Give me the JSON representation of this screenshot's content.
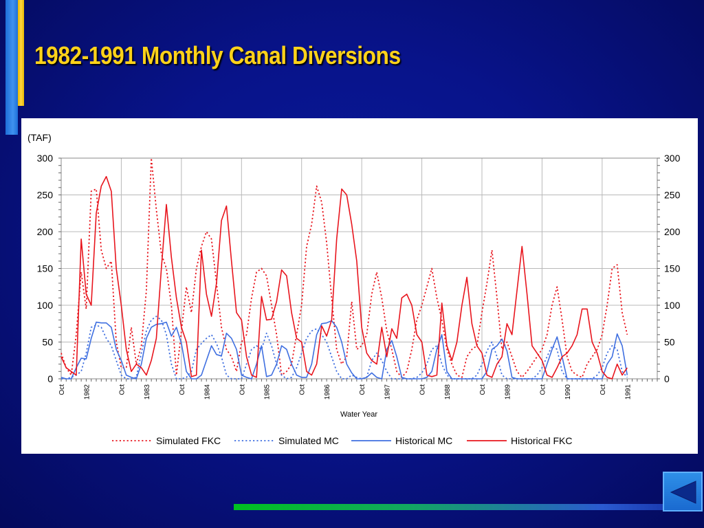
{
  "slide": {
    "title": "1982-1991 Monthly Canal Diversions"
  },
  "colors": {
    "fkc": "#e8141c",
    "mc": "#3f6fe0",
    "title": "#ffd21a"
  },
  "icons": {
    "nav_back": "back-arrow-icon"
  },
  "chart_data": {
    "type": "line",
    "unit_label": "(TAF)",
    "xlabel": "Water Year",
    "ylim": [
      0,
      300
    ],
    "yticks": [
      0,
      50,
      100,
      150,
      200,
      250,
      300
    ],
    "grid": true,
    "legend_position": "bottom",
    "x_start": "1981-10",
    "x_end": "1991-09",
    "x_tick_labels": [
      {
        "month": 0,
        "label": "Oct"
      },
      {
        "month": 5,
        "label": "1982"
      },
      {
        "month": 12,
        "label": "Oct"
      },
      {
        "month": 17,
        "label": "1983"
      },
      {
        "month": 24,
        "label": "Oct"
      },
      {
        "month": 29,
        "label": "1984"
      },
      {
        "month": 36,
        "label": "Oct"
      },
      {
        "month": 41,
        "label": "1985"
      },
      {
        "month": 48,
        "label": "Oct"
      },
      {
        "month": 53,
        "label": "1986"
      },
      {
        "month": 60,
        "label": "Oct"
      },
      {
        "month": 65,
        "label": "1987"
      },
      {
        "month": 72,
        "label": "Oct"
      },
      {
        "month": 77,
        "label": "1988"
      },
      {
        "month": 84,
        "label": "Oct"
      },
      {
        "month": 89,
        "label": "1989"
      },
      {
        "month": 96,
        "label": "Oct"
      },
      {
        "month": 101,
        "label": "1990"
      },
      {
        "month": 108,
        "label": "Oct"
      },
      {
        "month": 113,
        "label": "1991"
      }
    ],
    "series": [
      {
        "name": "Simulated FKC",
        "color": "#e8141c",
        "style": "dotted",
        "values": [
          35,
          15,
          5,
          60,
          145,
          95,
          255,
          258,
          175,
          150,
          160,
          50,
          15,
          15,
          70,
          20,
          45,
          120,
          300,
          230,
          170,
          150,
          100,
          5,
          65,
          125,
          90,
          150,
          180,
          200,
          190,
          130,
          70,
          40,
          30,
          10,
          50,
          60,
          110,
          145,
          150,
          140,
          100,
          60,
          5,
          10,
          20,
          60,
          100,
          180,
          210,
          262,
          240,
          185,
          110,
          40,
          20,
          30,
          105,
          40,
          45,
          60,
          115,
          145,
          110,
          65,
          40,
          10,
          2,
          10,
          40,
          80,
          100,
          125,
          150,
          110,
          80,
          40,
          20,
          5,
          2,
          30,
          40,
          45,
          90,
          130,
          175,
          110,
          40,
          50,
          30,
          10,
          2,
          10,
          20,
          30,
          40,
          60,
          100,
          125,
          80,
          30,
          10,
          5,
          2,
          20,
          30,
          40,
          60,
          100,
          150,
          155,
          90,
          60
        ]
      },
      {
        "name": "Simulated MC",
        "color": "#3f6fe0",
        "style": "dotted",
        "values": [
          0,
          0,
          2,
          5,
          10,
          35,
          70,
          73,
          70,
          55,
          45,
          25,
          5,
          0,
          0,
          2,
          35,
          65,
          80,
          85,
          80,
          60,
          20,
          0,
          0,
          2,
          10,
          40,
          48,
          55,
          60,
          48,
          30,
          5,
          0,
          0,
          0,
          20,
          40,
          45,
          40,
          62,
          45,
          20,
          5,
          0,
          2,
          15,
          35,
          55,
          65,
          68,
          60,
          50,
          30,
          10,
          0,
          0,
          5,
          2,
          0,
          2,
          25,
          35,
          25,
          10,
          0,
          0,
          0,
          0,
          0,
          2,
          8,
          20,
          40,
          45,
          20,
          5,
          0,
          0,
          0,
          0,
          0,
          5,
          20,
          38,
          50,
          30,
          5,
          0,
          0,
          0,
          0,
          0,
          0,
          5,
          15,
          30,
          45,
          40,
          10,
          0,
          0,
          0,
          0,
          0,
          0,
          5,
          15,
          35,
          45,
          40,
          10,
          2
        ]
      },
      {
        "name": "Historical MC",
        "color": "#3f6fe0",
        "style": "solid",
        "values": [
          2,
          0,
          0,
          15,
          28,
          27,
          55,
          77,
          76,
          76,
          70,
          40,
          25,
          5,
          2,
          0,
          20,
          55,
          70,
          74,
          75,
          77,
          58,
          70,
          48,
          10,
          0,
          0,
          5,
          25,
          45,
          33,
          31,
          62,
          55,
          40,
          5,
          2,
          0,
          20,
          45,
          3,
          5,
          20,
          45,
          40,
          20,
          5,
          2,
          2,
          20,
          60,
          75,
          76,
          79,
          70,
          50,
          20,
          8,
          0,
          0,
          2,
          8,
          2,
          0,
          40,
          52,
          30,
          2,
          0,
          0,
          0,
          0,
          2,
          10,
          40,
          60,
          10,
          0,
          0,
          0,
          0,
          0,
          0,
          0,
          10,
          40,
          45,
          54,
          38,
          2,
          0,
          0,
          0,
          0,
          0,
          0,
          20,
          40,
          57,
          30,
          0,
          0,
          0,
          0,
          0,
          0,
          0,
          0,
          20,
          30,
          61,
          45,
          5
        ]
      },
      {
        "name": "Historical FKC",
        "color": "#e8141c",
        "style": "solid",
        "values": [
          30,
          15,
          10,
          5,
          190,
          115,
          100,
          225,
          262,
          275,
          255,
          150,
          100,
          40,
          10,
          20,
          15,
          5,
          25,
          55,
          150,
          237,
          165,
          110,
          70,
          50,
          3,
          5,
          175,
          115,
          85,
          130,
          215,
          235,
          160,
          90,
          80,
          30,
          5,
          2,
          112,
          80,
          81,
          105,
          148,
          140,
          90,
          55,
          50,
          10,
          5,
          20,
          72,
          58,
          80,
          190,
          258,
          250,
          210,
          160,
          70,
          35,
          25,
          20,
          70,
          30,
          68,
          55,
          110,
          115,
          100,
          60,
          50,
          5,
          3,
          5,
          103,
          45,
          25,
          50,
          100,
          138,
          75,
          45,
          35,
          5,
          2,
          20,
          30,
          75,
          60,
          120,
          180,
          115,
          45,
          35,
          25,
          5,
          2,
          15,
          30,
          35,
          45,
          60,
          95,
          95,
          50,
          35,
          10,
          2,
          0,
          20,
          5,
          15
        ]
      }
    ]
  }
}
